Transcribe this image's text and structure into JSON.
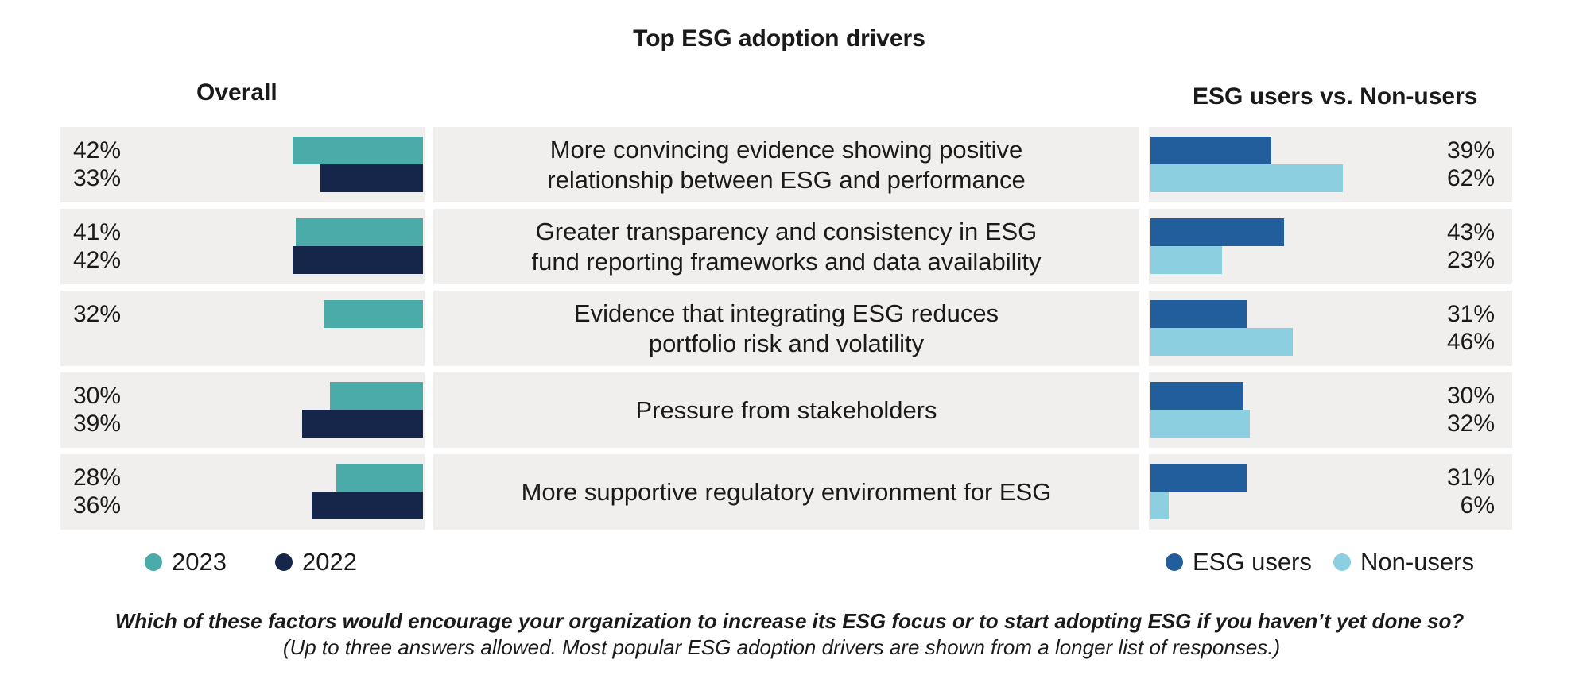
{
  "chart_data": {
    "type": "bar",
    "title": "Top ESG adoption drivers",
    "left_panel": {
      "heading": "Overall",
      "series": [
        {
          "name": "2023",
          "color": "#4aaba8",
          "values": [
            42,
            41,
            32,
            30,
            28
          ],
          "labels": [
            "42%",
            "41%",
            "32%",
            "30%",
            "28%"
          ]
        },
        {
          "name": "2022",
          "color": "#16264a",
          "values": [
            33,
            42,
            null,
            39,
            36
          ],
          "labels": [
            "33%",
            "42%",
            "",
            "39%",
            "36%"
          ]
        }
      ]
    },
    "right_panel": {
      "heading": "ESG users vs. Non-users",
      "series": [
        {
          "name": "ESG users",
          "color": "#225e9c",
          "values": [
            39,
            43,
            31,
            30,
            31
          ],
          "labels": [
            "39%",
            "43%",
            "31%",
            "30%",
            "31%"
          ]
        },
        {
          "name": "Non-users",
          "color": "#8ccfe0",
          "values": [
            62,
            23,
            46,
            32,
            6
          ],
          "labels": [
            "62%",
            "23%",
            "46%",
            "32%",
            "6%"
          ]
        }
      ]
    },
    "categories": [
      [
        "More convincing evidence showing positive",
        "relationship between ESG and performance"
      ],
      [
        "Greater transparency and consistency in ESG",
        "fund reporting frameworks and data availability"
      ],
      [
        "Evidence that integrating ESG reduces",
        "portfolio risk and volatility"
      ],
      [
        "Pressure from stakeholders"
      ],
      [
        "More supportive regulatory environment for ESG"
      ]
    ],
    "question": "Which of these factors would encourage your organization to increase its ESG focus or to start adopting ESG if you haven’t yet done so?",
    "note": "(Up to three answers allowed. Most popular ESG adoption drivers are shown from a longer list of responses.)"
  }
}
